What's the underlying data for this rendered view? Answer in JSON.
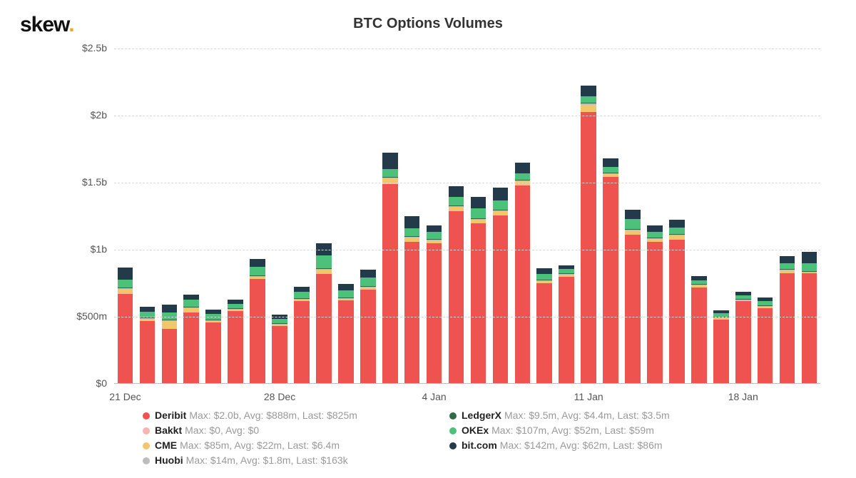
{
  "logo_text": "skew",
  "title": "BTC Options Volumes",
  "chart": {
    "type": "stacked-bar",
    "ylim": [
      0,
      2500
    ],
    "ytick_values": [
      0,
      500,
      1000,
      1500,
      2000,
      2500
    ],
    "ytick_labels": [
      "$0",
      "$500m",
      "$1b",
      "$1.5b",
      "$2b",
      "$2.5b"
    ],
    "xtick_indices": [
      0,
      7,
      14,
      21,
      28
    ],
    "xtick_labels": [
      "21 Dec",
      "28 Dec",
      "4 Jan",
      "11 Jan",
      "18 Jan"
    ],
    "background_color": "#ffffff",
    "grid_color": "#d9d9d9",
    "bar_gap_ratio": 0.3,
    "series_colors": {
      "deribit": "#ef5350",
      "bakkt": "#f8b5b0",
      "cme": "#f0c66e",
      "huobi": "#bdbdbd",
      "ledgerx": "#2e6b46",
      "okex": "#4bc17a",
      "bitcom": "#223a4a"
    },
    "series_order": [
      "deribit",
      "bakkt",
      "cme",
      "huobi",
      "ledgerx",
      "okex",
      "bitcom"
    ],
    "days": [
      {
        "deribit": 670,
        "bakkt": 0,
        "cme": 35,
        "huobi": 3,
        "ledgerx": 5,
        "okex": 60,
        "bitcom": 90
      },
      {
        "deribit": 470,
        "bakkt": 0,
        "cme": 15,
        "huobi": 2,
        "ledgerx": 4,
        "okex": 40,
        "bitcom": 40
      },
      {
        "deribit": 410,
        "bakkt": 0,
        "cme": 60,
        "huobi": 2,
        "ledgerx": 4,
        "okex": 50,
        "bitcom": 60
      },
      {
        "deribit": 530,
        "bakkt": 0,
        "cme": 35,
        "huobi": 2,
        "ledgerx": 4,
        "okex": 50,
        "bitcom": 40
      },
      {
        "deribit": 455,
        "bakkt": 0,
        "cme": 15,
        "huobi": 2,
        "ledgerx": 3,
        "okex": 40,
        "bitcom": 35
      },
      {
        "deribit": 540,
        "bakkt": 0,
        "cme": 15,
        "huobi": 2,
        "ledgerx": 4,
        "okex": 30,
        "bitcom": 30
      },
      {
        "deribit": 780,
        "bakkt": 0,
        "cme": 20,
        "huobi": 3,
        "ledgerx": 4,
        "okex": 60,
        "bitcom": 60
      },
      {
        "deribit": 430,
        "bakkt": 0,
        "cme": 10,
        "huobi": 2,
        "ledgerx": 3,
        "okex": 35,
        "bitcom": 30
      },
      {
        "deribit": 615,
        "bakkt": 0,
        "cme": 15,
        "huobi": 2,
        "ledgerx": 4,
        "okex": 45,
        "bitcom": 40
      },
      {
        "deribit": 820,
        "bakkt": 0,
        "cme": 30,
        "huobi": 4,
        "ledgerx": 5,
        "okex": 95,
        "bitcom": 90
      },
      {
        "deribit": 620,
        "bakkt": 0,
        "cme": 15,
        "huobi": 2,
        "ledgerx": 4,
        "okex": 50,
        "bitcom": 50
      },
      {
        "deribit": 700,
        "bakkt": 0,
        "cme": 20,
        "huobi": 3,
        "ledgerx": 5,
        "okex": 60,
        "bitcom": 60
      },
      {
        "deribit": 1490,
        "bakkt": 0,
        "cme": 40,
        "huobi": 5,
        "ledgerx": 6,
        "okex": 60,
        "bitcom": 120
      },
      {
        "deribit": 1060,
        "bakkt": 0,
        "cme": 30,
        "huobi": 4,
        "ledgerx": 5,
        "okex": 60,
        "bitcom": 90
      },
      {
        "deribit": 1050,
        "bakkt": 0,
        "cme": 20,
        "huobi": 3,
        "ledgerx": 5,
        "okex": 50,
        "bitcom": 50
      },
      {
        "deribit": 1285,
        "bakkt": 0,
        "cme": 35,
        "huobi": 5,
        "ledgerx": 6,
        "okex": 65,
        "bitcom": 75
      },
      {
        "deribit": 1195,
        "bakkt": 0,
        "cme": 30,
        "huobi": 5,
        "ledgerx": 6,
        "okex": 70,
        "bitcom": 90
      },
      {
        "deribit": 1255,
        "bakkt": 0,
        "cme": 30,
        "huobi": 5,
        "ledgerx": 6,
        "okex": 70,
        "bitcom": 95
      },
      {
        "deribit": 1480,
        "bakkt": 0,
        "cme": 30,
        "huobi": 5,
        "ledgerx": 6,
        "okex": 50,
        "bitcom": 80
      },
      {
        "deribit": 750,
        "bakkt": 0,
        "cme": 15,
        "huobi": 3,
        "ledgerx": 4,
        "okex": 45,
        "bitcom": 40
      },
      {
        "deribit": 800,
        "bakkt": 0,
        "cme": 15,
        "huobi": 3,
        "ledgerx": 4,
        "okex": 30,
        "bitcom": 30
      },
      {
        "deribit": 2025,
        "bakkt": 0,
        "cme": 55,
        "huobi": 8,
        "ledgerx": 8,
        "okex": 50,
        "bitcom": 80
      },
      {
        "deribit": 1540,
        "bakkt": 0,
        "cme": 25,
        "huobi": 5,
        "ledgerx": 6,
        "okex": 40,
        "bitcom": 65
      },
      {
        "deribit": 1110,
        "bakkt": 0,
        "cme": 35,
        "huobi": 5,
        "ledgerx": 6,
        "okex": 70,
        "bitcom": 70
      },
      {
        "deribit": 1060,
        "bakkt": 0,
        "cme": 20,
        "huobi": 4,
        "ledgerx": 5,
        "okex": 40,
        "bitcom": 50
      },
      {
        "deribit": 1075,
        "bakkt": 0,
        "cme": 30,
        "huobi": 5,
        "ledgerx": 6,
        "okex": 50,
        "bitcom": 60
      },
      {
        "deribit": 720,
        "bakkt": 0,
        "cme": 12,
        "huobi": 2,
        "ledgerx": 3,
        "okex": 30,
        "bitcom": 30
      },
      {
        "deribit": 480,
        "bakkt": 0,
        "cme": 10,
        "huobi": 2,
        "ledgerx": 3,
        "okex": 25,
        "bitcom": 20
      },
      {
        "deribit": 615,
        "bakkt": 0,
        "cme": 10,
        "huobi": 2,
        "ledgerx": 3,
        "okex": 25,
        "bitcom": 25
      },
      {
        "deribit": 565,
        "bakkt": 0,
        "cme": 10,
        "huobi": 2,
        "ledgerx": 3,
        "okex": 30,
        "bitcom": 30
      },
      {
        "deribit": 825,
        "bakkt": 0,
        "cme": 20,
        "huobi": 3,
        "ledgerx": 5,
        "okex": 45,
        "bitcom": 50
      },
      {
        "deribit": 825,
        "bakkt": 0,
        "cme": 6,
        "huobi": 0.2,
        "ledgerx": 4,
        "okex": 59,
        "bitcom": 86
      }
    ]
  },
  "legend": {
    "left": [
      {
        "key": "deribit",
        "name": "Deribit",
        "stats": "Max: $2.0b, Avg: $888m, Last: $825m"
      },
      {
        "key": "bakkt",
        "name": "Bakkt",
        "stats": "Max: $0, Avg: $0"
      },
      {
        "key": "cme",
        "name": "CME",
        "stats": "Max: $85m, Avg: $22m, Last: $6.4m"
      },
      {
        "key": "huobi",
        "name": "Huobi",
        "stats": "Max: $14m, Avg: $1.8m, Last: $163k"
      }
    ],
    "right": [
      {
        "key": "ledgerx",
        "name": "LedgerX",
        "stats": "Max: $9.5m, Avg: $4.4m, Last: $3.5m"
      },
      {
        "key": "okex",
        "name": "OKEx",
        "stats": "Max: $107m, Avg: $52m, Last: $59m"
      },
      {
        "key": "bitcom",
        "name": "bit.com",
        "stats": "Max: $142m, Avg: $62m, Last: $86m"
      }
    ]
  }
}
